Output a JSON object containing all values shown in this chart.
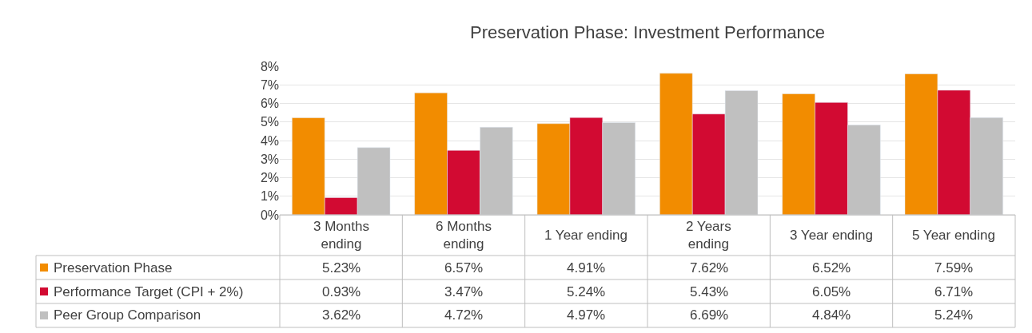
{
  "chart_data": {
    "type": "bar",
    "title": "Preservation Phase: Investment Performance",
    "categories": [
      "3 Months ending",
      "6 Months ending",
      "1 Year ending",
      "2 Years ending",
      "3 Year ending",
      "5 Year ending"
    ],
    "series": [
      {
        "name": "Preservation Phase",
        "color": "#f28c00",
        "values": [
          5.23,
          6.57,
          4.91,
          7.62,
          6.52,
          7.59
        ],
        "value_labels": [
          "5.23%",
          "6.57%",
          "4.91%",
          "7.62%",
          "6.52%",
          "7.59%"
        ]
      },
      {
        "name": "Performance Target (CPI + 2%)",
        "color": "#d20a32",
        "values": [
          0.93,
          3.47,
          5.24,
          5.43,
          6.05,
          6.71
        ],
        "value_labels": [
          "0.93%",
          "3.47%",
          "5.24%",
          "5.43%",
          "6.05%",
          "6.71%"
        ]
      },
      {
        "name": "Peer Group Comparison",
        "color": "#c0c0c0",
        "values": [
          3.62,
          4.72,
          4.97,
          6.69,
          4.84,
          5.24
        ],
        "value_labels": [
          "3.62%",
          "4.72%",
          "4.97%",
          "6.69%",
          "4.84%",
          "5.24%"
        ]
      }
    ],
    "ylim": [
      0,
      8
    ],
    "yticks": [
      {
        "value": 0,
        "label": "0%"
      },
      {
        "value": 1,
        "label": "1%"
      },
      {
        "value": 2,
        "label": "2%"
      },
      {
        "value": 3,
        "label": "3%"
      },
      {
        "value": 4,
        "label": "4%"
      },
      {
        "value": 5,
        "label": "5%"
      },
      {
        "value": 6,
        "label": "6%"
      },
      {
        "value": 7,
        "label": "7%"
      },
      {
        "value": 8,
        "label": "8%"
      }
    ],
    "grid": "y",
    "legend": "bottom"
  }
}
